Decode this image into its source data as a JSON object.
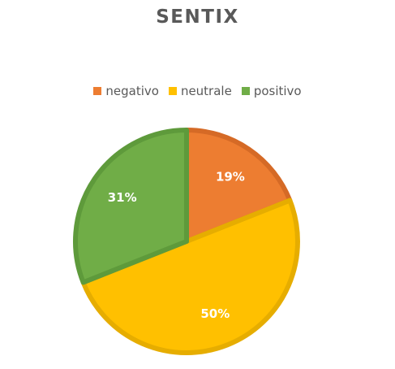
{
  "chart_data": {
    "type": "pie",
    "title": "SENTIX",
    "legend_position": "top",
    "categories": [
      "negativo",
      "neutrale",
      "positivo"
    ],
    "values": [
      19,
      50,
      31
    ],
    "data_labels": [
      "19%",
      "50%",
      "31%"
    ],
    "colors": [
      "#ED7D31",
      "#FFC000",
      "#70AD47"
    ],
    "border_colors": [
      "#D56A26",
      "#E6AD00",
      "#5E9A3B"
    ]
  }
}
